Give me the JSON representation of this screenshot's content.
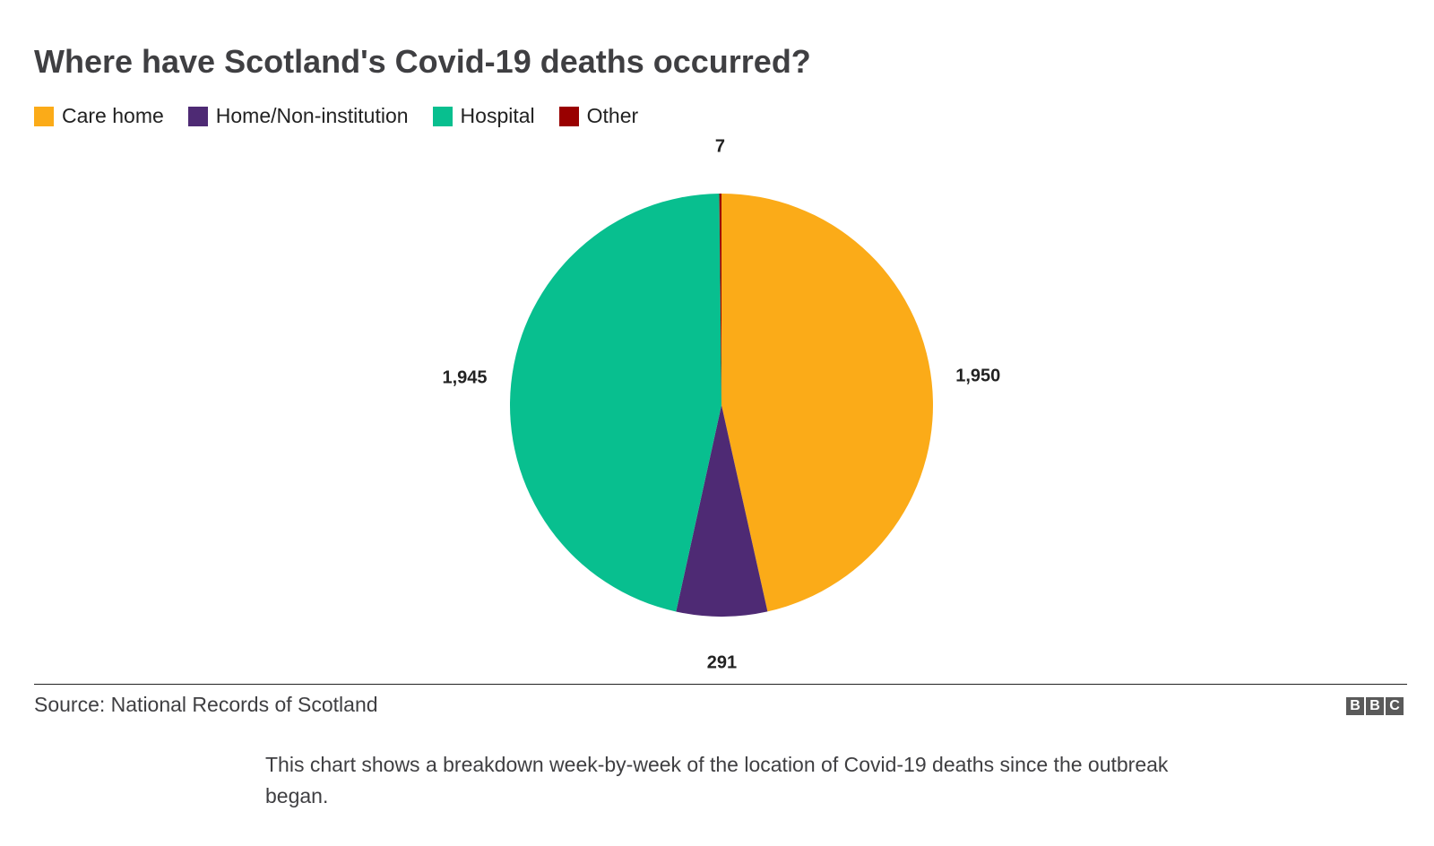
{
  "chart_data": {
    "type": "pie",
    "title": "Where have Scotland's Covid-19 deaths occurred?",
    "legend_position": "top-left",
    "categories": [
      "Care home",
      "Home/Non-institution",
      "Hospital",
      "Other"
    ],
    "values": [
      1950,
      291,
      1945,
      7
    ],
    "value_labels": [
      "1,950",
      "291",
      "1,945",
      "7"
    ],
    "colors": [
      "#fbab18",
      "#4e2a74",
      "#08bf8f",
      "#990000"
    ]
  },
  "source": "Source: National Records of Scotland",
  "logo": {
    "letters": [
      "B",
      "B",
      "C"
    ]
  },
  "caption": "This chart shows a breakdown week-by-week of the location of Covid-19 deaths since the outbreak began."
}
